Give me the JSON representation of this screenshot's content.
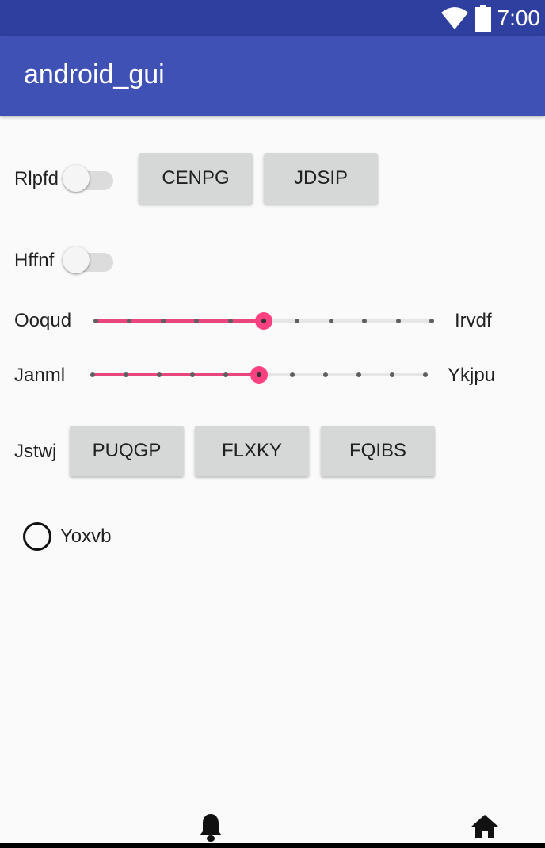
{
  "status_bar": {
    "time": "7:00",
    "icons": [
      "wifi-icon",
      "battery-icon"
    ],
    "background": "#2f3f9f"
  },
  "app_bar": {
    "title": "android_gui",
    "background": "#3f51b5"
  },
  "rows": {
    "switch1": {
      "label": "Rlpfd",
      "checked": false
    },
    "buttons1": [
      "CENPG",
      "JDSIP"
    ],
    "switch2": {
      "label": "Hffnf",
      "checked": false
    },
    "slider1": {
      "left_label": "Ooqud",
      "right_label": "Irvdf",
      "steps": 10,
      "value": 5
    },
    "slider2": {
      "left_label": "Janml",
      "right_label": "Ykjpu",
      "steps": 10,
      "value": 5
    },
    "button_group": {
      "label": "Jstwj",
      "buttons": [
        "PUQGP",
        "FLXKY",
        "FQIBS"
      ]
    },
    "radio": {
      "label": "Yoxvb",
      "checked": false
    }
  },
  "accent_color": "#ff4081",
  "bottom_nav": {
    "icons": [
      "bell-icon",
      "home-icon"
    ]
  }
}
